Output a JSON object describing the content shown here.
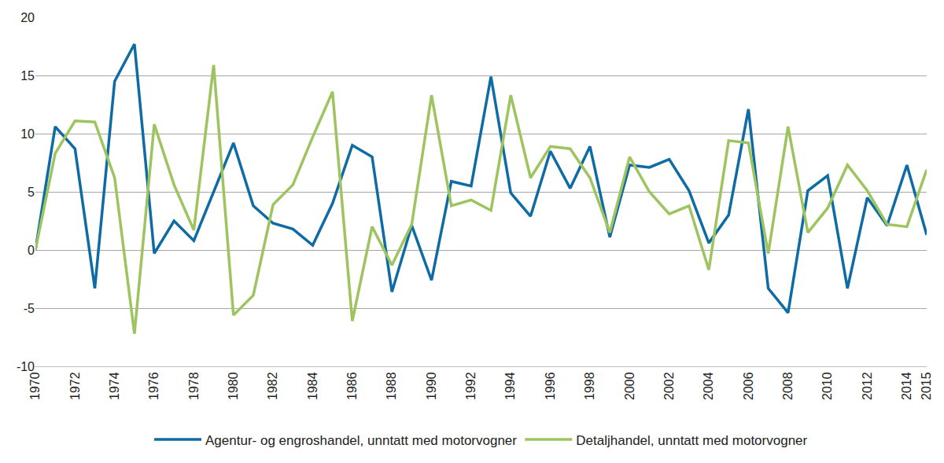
{
  "chart_data": {
    "type": "line",
    "x": [
      1970,
      1971,
      1972,
      1973,
      1974,
      1975,
      1976,
      1977,
      1978,
      1979,
      1980,
      1981,
      1982,
      1983,
      1984,
      1985,
      1986,
      1987,
      1988,
      1989,
      1990,
      1991,
      1992,
      1993,
      1994,
      1995,
      1996,
      1997,
      1998,
      1999,
      2000,
      2001,
      2002,
      2003,
      2004,
      2005,
      2006,
      2007,
      2008,
      2009,
      2010,
      2011,
      2012,
      2013,
      2014,
      2015
    ],
    "series": [
      {
        "name": "Agentur- og engroshandel, unntatt med motorvogner",
        "color": "#0f6ba3",
        "values": [
          0,
          10.6,
          8.7,
          -3.3,
          14.5,
          17.7,
          -0.3,
          2.5,
          0.8,
          5.0,
          9.2,
          3.8,
          2.3,
          1.8,
          0.4,
          4.0,
          9.0,
          8.0,
          -3.6,
          2.1,
          -2.6,
          5.9,
          5.5,
          14.9,
          4.9,
          2.9,
          8.5,
          5.3,
          8.9,
          1.1,
          7.3,
          7.1,
          7.8,
          5.1,
          0.6,
          3.0,
          12.1,
          -3.3,
          -5.4,
          5.1,
          6.4,
          -3.3,
          4.5,
          2.1,
          7.3,
          1.3
        ]
      },
      {
        "name": "Detaljhandel, unntatt med motorvogner",
        "color": "#9dc45f",
        "values": [
          0,
          8.3,
          11.1,
          11.0,
          6.2,
          -7.2,
          10.8,
          5.6,
          1.7,
          15.9,
          -5.6,
          -3.9,
          3.9,
          5.6,
          9.7,
          13.6,
          -6.1,
          2.0,
          -1.3,
          2.2,
          13.3,
          3.8,
          4.3,
          3.4,
          13.3,
          6.2,
          8.9,
          8.7,
          6.2,
          1.5,
          8.0,
          5.0,
          3.1,
          3.8,
          -1.7,
          9.4,
          9.2,
          -0.3,
          10.6,
          1.5,
          3.6,
          7.3,
          5.1,
          2.2,
          2.0,
          6.9
        ]
      }
    ],
    "xlim": [
      1970,
      2015
    ],
    "xticks": [
      1970,
      1972,
      1974,
      1976,
      1978,
      1980,
      1982,
      1984,
      1986,
      1988,
      1990,
      1992,
      1994,
      1996,
      1998,
      2000,
      2002,
      2004,
      2006,
      2008,
      2010,
      2012,
      2014,
      2015
    ],
    "ylim": [
      -10,
      20
    ],
    "yticks": [
      -10,
      -5,
      0,
      5,
      10,
      15,
      20
    ],
    "grid": true,
    "legend": "bottom"
  }
}
